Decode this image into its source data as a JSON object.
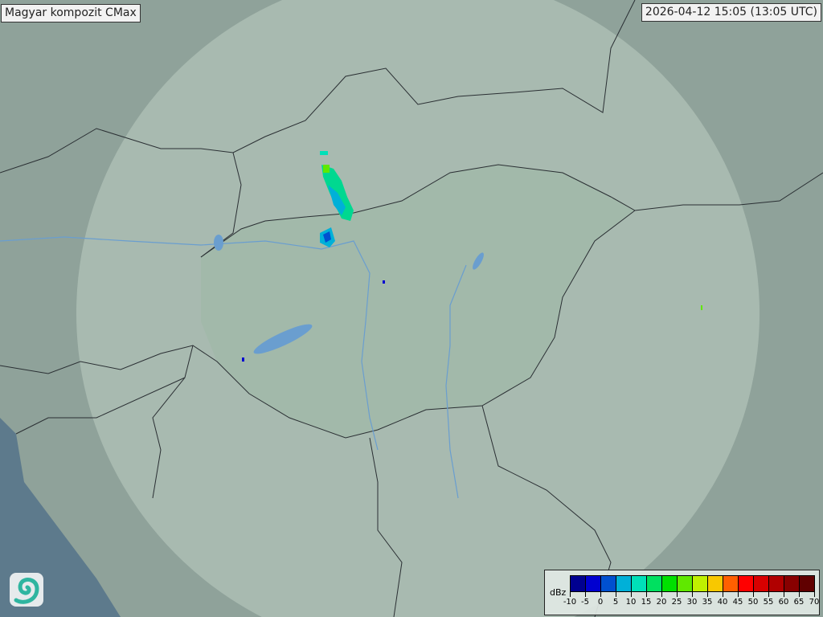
{
  "title": "Magyar kompozit  CMax",
  "timestamp": "2026-04-12 15:05 (13:05 UTC)",
  "logo_icon": "swirl-logo-icon",
  "legend": {
    "unit": "dBz",
    "labels": [
      "-10",
      "-5",
      "0",
      "5",
      "10",
      "15",
      "20",
      "25",
      "30",
      "35",
      "40",
      "45",
      "50",
      "55",
      "60",
      "65",
      "70"
    ],
    "colors": [
      "#000090",
      "#0000d0",
      "#0050d0",
      "#00b0d8",
      "#00e0b8",
      "#00e060",
      "#00e000",
      "#60e800",
      "#c0f000",
      "#f8c800",
      "#ff6000",
      "#ff0000",
      "#d80000",
      "#b00000",
      "#880000",
      "#600000"
    ]
  },
  "colors": {
    "terrain": "#8fa29a",
    "radar_coverage": "#c8d6cc",
    "sea": "#5d7a8c",
    "water": "#6a9ecf"
  }
}
